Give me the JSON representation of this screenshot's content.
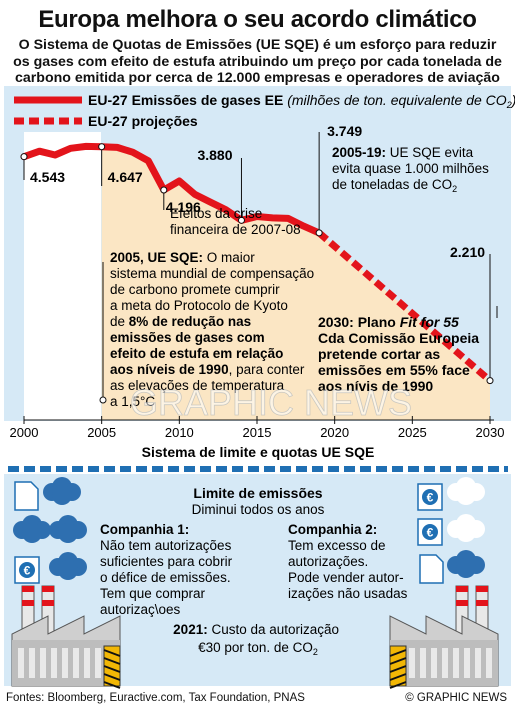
{
  "header": {
    "title": "Europa melhora o seu acordo climático",
    "subtitle": [
      "O Sistema de Quotas de Emissões (UE SQE) é um esforço para reduzir",
      "os gases com efeito de estufa atribuindo um preço por cada tonelada de",
      "carbono emitida por cerca de 12.000 empresas e operadores de aviação"
    ]
  },
  "legend": {
    "emissions": "EU-27 Emissões de gases EE",
    "emissions_unit_pre": "(milhões de ton. equivalente de CO",
    "emissions_unit_sub": "2",
    "emissions_unit_post": ")",
    "projection": "EU-27 projeções"
  },
  "colors": {
    "red": "#e3141b",
    "shade": "#fbe6c4",
    "blue": "#1f6fb3",
    "panel": "#d6e9f6",
    "dark_blue": "#155a96"
  },
  "chart_data": {
    "type": "line",
    "xlim": [
      2000,
      2030
    ],
    "ylim": [
      1800,
      4800
    ],
    "x_ticks": [
      2000,
      2005,
      2010,
      2015,
      2020,
      2025,
      2030
    ],
    "series": [
      {
        "name": "EU-27 Emissões de gases EE",
        "x": [
          2000,
          2001,
          2002,
          2003,
          2004,
          2005,
          2006,
          2007,
          2008,
          2009,
          2010,
          2011,
          2012,
          2013,
          2014,
          2015,
          2016,
          2017,
          2018,
          2019
        ],
        "values": [
          4543,
          4600,
          4560,
          4630,
          4650,
          4647,
          4640,
          4590,
          4500,
          4196,
          4290,
          4150,
          4070,
          3990,
          3880,
          3920,
          3905,
          3900,
          3820,
          3749
        ]
      },
      {
        "name": "EU-27 projeções",
        "x": [
          2019,
          2030
        ],
        "values": [
          3749,
          2210
        ]
      }
    ],
    "labels": [
      {
        "x": 2000,
        "y": 4543,
        "text": "4.543"
      },
      {
        "x": 2005,
        "y": 4647,
        "text": "4.647"
      },
      {
        "x": 2009,
        "y": 4196,
        "text": "4.196"
      },
      {
        "x": 2014,
        "y": 3880,
        "text": "3.880"
      },
      {
        "x": 2019,
        "y": 3749,
        "text": "3.749"
      },
      {
        "x": 2030,
        "y": 2210,
        "text": "2.210"
      }
    ]
  },
  "annotations": {
    "crisis": [
      "Efeitos da crise",
      "financeira de 2007-08"
    ],
    "y2005_lines": [
      [
        {
          "t": "2005, UE SQE:",
          "b": true
        },
        {
          "t": " O maior",
          "b": false
        }
      ],
      [
        {
          "t": "sistema mundial de compensação",
          "b": false
        }
      ],
      [
        {
          "t": "de carbono promete cumprir",
          "b": false
        }
      ],
      [
        {
          "t": "a meta do Protocolo de Kyoto",
          "b": false
        }
      ],
      [
        {
          "t": "de ",
          "b": false
        },
        {
          "t": "8% de redução nas",
          "b": true
        }
      ],
      [
        {
          "t": "emissões de gases com",
          "b": true
        }
      ],
      [
        {
          "t": "efeito de estufa em relação",
          "b": true
        }
      ],
      [
        {
          "t": "aos níveis de 1990",
          "b": true
        },
        {
          "t": ", para conter",
          "b": false
        }
      ],
      [
        {
          "t": "as elevações de temperatura",
          "b": false
        }
      ],
      [
        {
          "t": "a 1,5°C",
          "b": false
        }
      ]
    ],
    "y2019_title": "2005-19:",
    "y2019_rest": " UE SQE evita",
    "y2019_l2": "evita quase 1.000 milhões",
    "y2019_l3": "de toneladas de CO",
    "y2019_sub": "2",
    "y2030_l1_pre": "2030: Plano ",
    "y2030_l1_it": "Fit for 55",
    "y2030_lines": [
      "Cda Comissão Europeia",
      "pretende cortar as",
      "emissões em 55% face",
      "aos nívis de 1990"
    ]
  },
  "watermark": "GRAPHIC NEWS",
  "system": {
    "title": "Sistema de limite e quotas UE SQE",
    "cap_title": "Limite de emissões",
    "cap_sub": "Diminui todos os anos",
    "c1_title": "Companhia 1:",
    "c1_lines": [
      "Não tem autorizações",
      "suficientes para cobrir",
      "o défice de emissões.",
      "Tem que comprar",
      "autorizaç\\oes"
    ],
    "c2_title": "Companhia 2:",
    "c2_lines": [
      "Tem excesso de",
      "autorizações.",
      "Pode vender autor-",
      "izações não usadas"
    ],
    "price_bold": "2021:",
    "price_rest": " Custo da autorização",
    "price_l2_pre": "€30 por ton. de CO",
    "price_l2_sub": "2",
    "euro_symbol": "€"
  },
  "footer": {
    "sources": "Fontes: Bloomberg, Euractive.com, Tax Foundation, PNAS",
    "credit": "© GRAPHIC NEWS"
  }
}
